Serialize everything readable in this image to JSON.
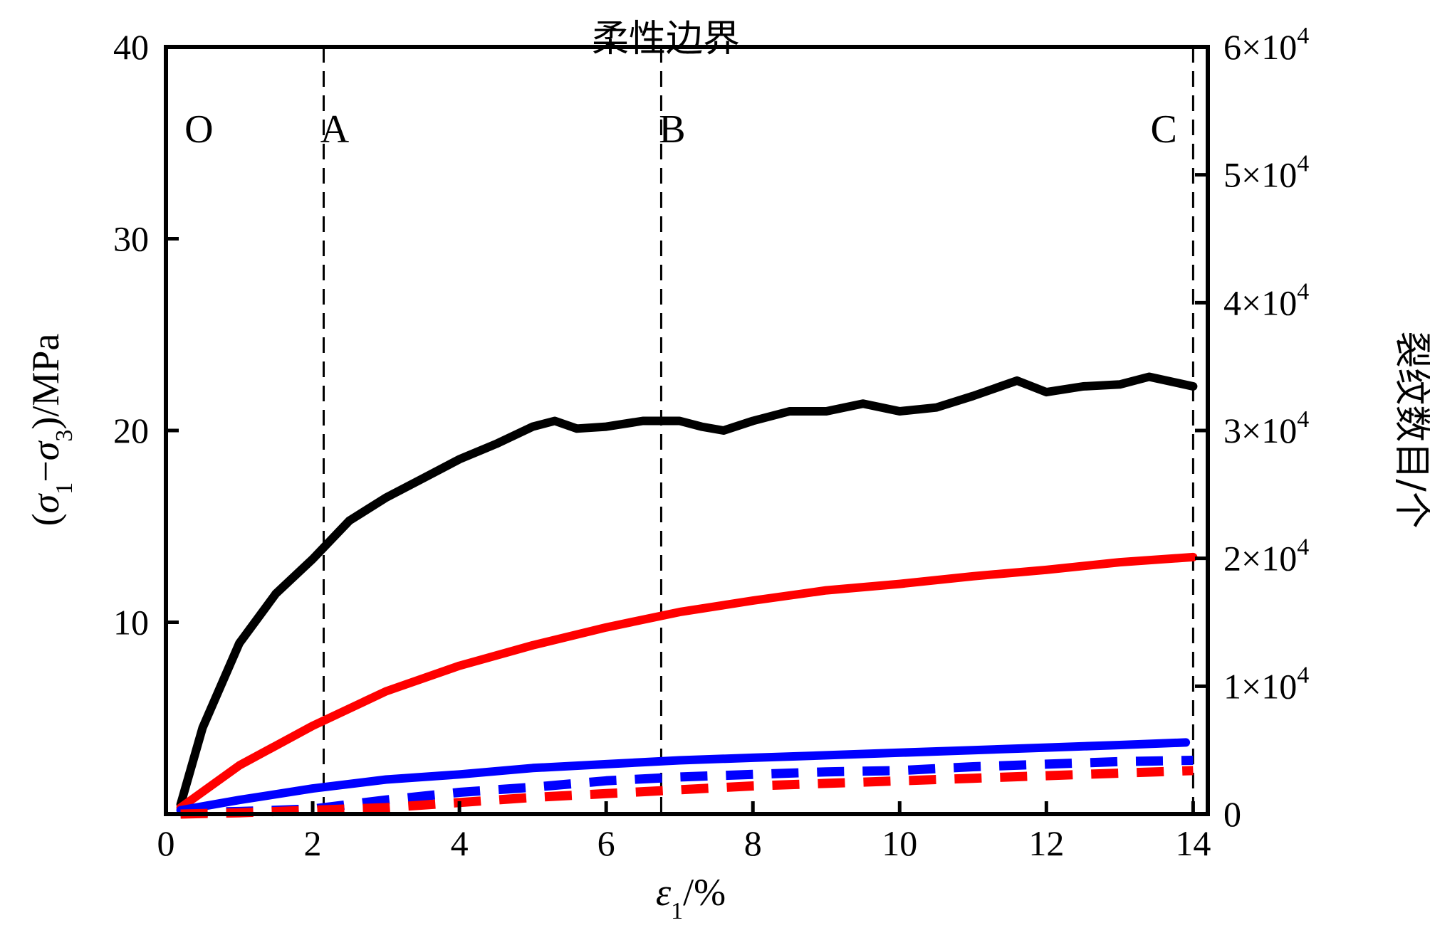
{
  "chart_data": {
    "type": "line",
    "title": "柔性边界",
    "xlabel": "ε1/%",
    "ylabel": "(σ1−σ3)/MPa",
    "ylabel_right": "裂纹数目/个",
    "xlim": [
      0,
      14.2
    ],
    "ylim": [
      0,
      40
    ],
    "ylim_right": [
      0,
      60000
    ],
    "x_ticks": [
      "0",
      "2",
      "4",
      "6",
      "8",
      "10",
      "12",
      "14"
    ],
    "y_ticks": [
      "10",
      "20",
      "30",
      "40"
    ],
    "y_right_ticks": [
      "0",
      "1×10",
      "2×10",
      "3×10",
      "4×10",
      "5×10",
      "6×10"
    ],
    "y_right_tick_exponent": "4",
    "grid": false,
    "regions": [
      {
        "label": "O",
        "x": 0.45
      },
      {
        "label": "A",
        "x": 2.3
      },
      {
        "label": "B",
        "x": 6.9
      },
      {
        "label": "C",
        "x": 13.6
      }
    ],
    "boundaries": [
      2.15,
      6.75,
      14.0
    ],
    "series": [
      {
        "axis": "left",
        "color": "#000000",
        "style": "solid",
        "x": [
          0.2,
          0.5,
          1.0,
          1.5,
          2.0,
          2.5,
          3.0,
          3.5,
          4.0,
          4.5,
          5.0,
          5.3,
          5.6,
          6.0,
          6.5,
          7.0,
          7.3,
          7.6,
          8.0,
          8.5,
          9.0,
          9.5,
          10.0,
          10.5,
          11.0,
          11.6,
          12.0,
          12.5,
          13.0,
          13.4,
          14.0
        ],
        "values": [
          0.5,
          4.5,
          8.9,
          11.5,
          13.3,
          15.3,
          16.5,
          17.5,
          18.5,
          19.3,
          20.2,
          20.5,
          20.1,
          20.2,
          20.5,
          20.5,
          20.2,
          20.0,
          20.5,
          21.0,
          21.0,
          21.4,
          21.0,
          21.2,
          21.8,
          22.6,
          22.0,
          22.3,
          22.4,
          22.8,
          22.3
        ]
      },
      {
        "axis": "right",
        "color": "#ff0000",
        "style": "solid",
        "x": [
          0.2,
          1.0,
          2.0,
          3.0,
          4.0,
          5.0,
          6.0,
          7.0,
          8.0,
          9.0,
          10.0,
          11.0,
          12.0,
          13.0,
          14.0
        ],
        "values": [
          500,
          3800,
          6900,
          9600,
          11600,
          13200,
          14600,
          15800,
          16700,
          17500,
          18000,
          18600,
          19100,
          19700,
          20100
        ]
      },
      {
        "axis": "right",
        "color": "#0000ff",
        "style": "solid",
        "x": [
          0.2,
          1.0,
          2.0,
          3.0,
          4.0,
          5.0,
          6.0,
          7.0,
          8.0,
          9.0,
          10.0,
          11.0,
          12.0,
          13.0,
          13.9
        ],
        "values": [
          300,
          1100,
          2000,
          2700,
          3100,
          3600,
          3900,
          4200,
          4400,
          4600,
          4800,
          5000,
          5200,
          5400,
          5600
        ]
      },
      {
        "axis": "right",
        "color": "#0000ff",
        "style": "dashed",
        "x": [
          0.2,
          1.0,
          2.0,
          3.0,
          4.0,
          5.0,
          6.0,
          7.0,
          8.0,
          9.0,
          10.0,
          11.0,
          12.0,
          13.0,
          14.0
        ],
        "values": [
          100,
          200,
          400,
          1100,
          1700,
          2100,
          2600,
          2900,
          3100,
          3300,
          3400,
          3700,
          3900,
          4100,
          4200
        ]
      },
      {
        "axis": "right",
        "color": "#ff0000",
        "style": "dashed",
        "x": [
          0.2,
          1.0,
          2.0,
          3.0,
          4.0,
          5.0,
          6.0,
          7.0,
          8.0,
          9.0,
          10.0,
          11.0,
          12.0,
          13.0,
          14.0
        ],
        "values": [
          0,
          100,
          300,
          500,
          900,
          1300,
          1600,
          1900,
          2200,
          2400,
          2600,
          2800,
          3000,
          3200,
          3400
        ]
      }
    ]
  }
}
